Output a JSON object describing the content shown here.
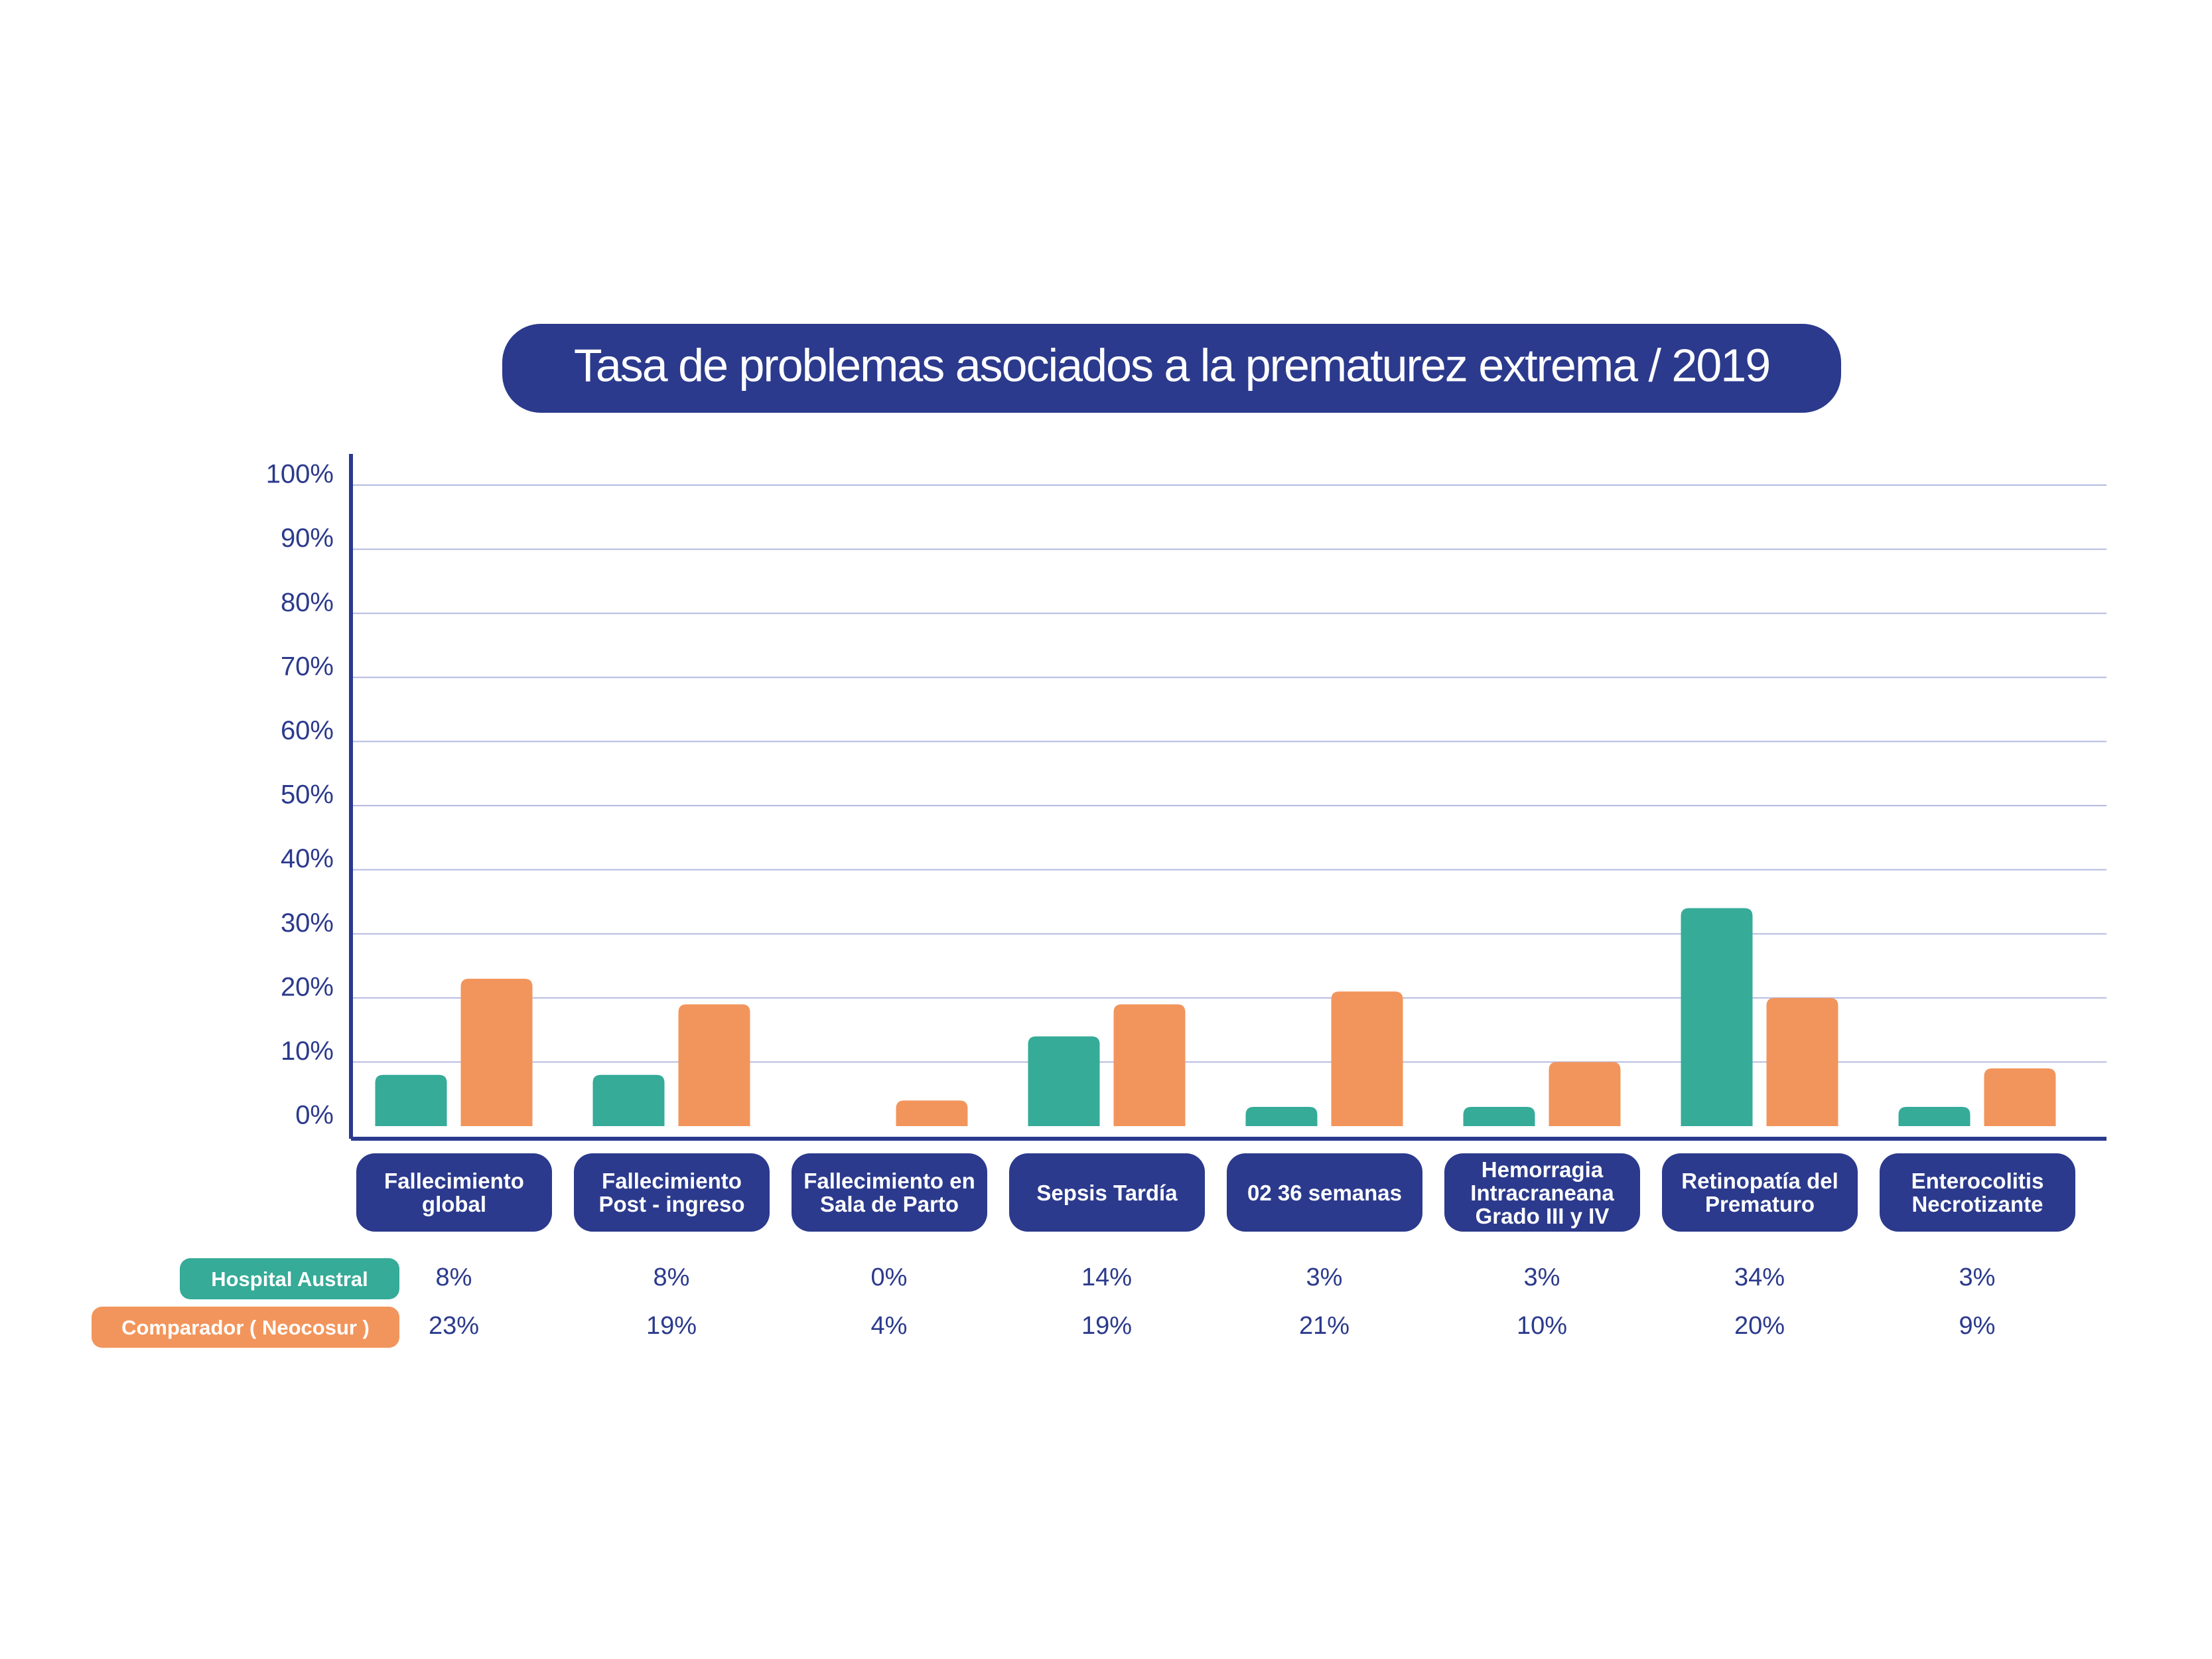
{
  "chart_data": {
    "type": "bar",
    "title": "Tasa de problemas asociados a la prematurez extrema / 2019",
    "categories": [
      "Fallecimiento global",
      "Fallecimiento Post - ingreso",
      "Fallecimiento en Sala de Parto",
      "Sepsis Tardía",
      "02 36 semanas",
      "Hemorragia Intracraneana Grado III y IV",
      "Retinopatía del Prematuro",
      "Enterocolitis Necrotizante"
    ],
    "series": [
      {
        "name": "Hospital Austral",
        "color": "#35ab98",
        "values": [
          8,
          8,
          0,
          14,
          3,
          3,
          34,
          3
        ],
        "value_labels": [
          "8%",
          "8%",
          "0%",
          "14%",
          "3%",
          "3%",
          "34%",
          "3%"
        ]
      },
      {
        "name": "Comparador ( Neocosur )",
        "color": "#f2955c",
        "values": [
          23,
          19,
          4,
          19,
          21,
          10,
          20,
          9
        ],
        "value_labels": [
          "23%",
          "19%",
          "4%",
          "19%",
          "21%",
          "10%",
          "20%",
          "9%"
        ]
      }
    ],
    "ylim": [
      0,
      100
    ],
    "yticks": [
      {
        "value": 0,
        "label": "0%"
      },
      {
        "value": 10,
        "label": "10%"
      },
      {
        "value": 20,
        "label": "20%"
      },
      {
        "value": 30,
        "label": "30%"
      },
      {
        "value": 40,
        "label": "40%"
      },
      {
        "value": 50,
        "label": "50%"
      },
      {
        "value": 60,
        "label": "60%"
      },
      {
        "value": 70,
        "label": "70%"
      },
      {
        "value": 80,
        "label": "80%"
      },
      {
        "value": 90,
        "label": "90%"
      },
      {
        "value": 100,
        "label": "100%"
      }
    ],
    "grid": true
  }
}
